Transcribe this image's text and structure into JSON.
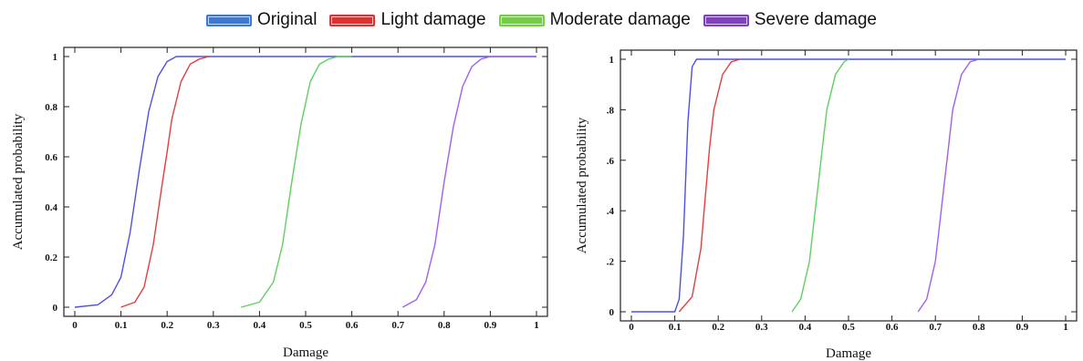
{
  "legend": {
    "entries": [
      {
        "label": "Original",
        "color": "#3c78d8"
      },
      {
        "label": "Light damage",
        "color": "#e03030"
      },
      {
        "label": "Moderate damage",
        "color": "#70d040"
      },
      {
        "label": "Severe damage",
        "color": "#8040c0"
      }
    ]
  },
  "chart_data": [
    {
      "type": "line",
      "title": "",
      "xlabel": "Damage",
      "ylabel": "Accumulated probability",
      "xlim": [
        0,
        1
      ],
      "ylim": [
        0,
        1
      ],
      "x_ticks": [
        "0",
        "0.1",
        "0.2",
        "0.3",
        "0.4",
        "0.5",
        "0.6",
        "0.7",
        "0.8",
        "0.9",
        "1"
      ],
      "y_ticks": [
        "0",
        "0.2",
        "0.4",
        "0.6",
        "0.8",
        "1"
      ],
      "grid": false,
      "series": [
        {
          "name": "Original",
          "color": "#5050e0",
          "x": [
            0,
            0.05,
            0.08,
            0.1,
            0.12,
            0.14,
            0.16,
            0.18,
            0.2,
            0.22,
            0.25,
            0.3,
            1.0
          ],
          "y": [
            0,
            0.01,
            0.05,
            0.12,
            0.3,
            0.55,
            0.78,
            0.92,
            0.98,
            1,
            1,
            1,
            1
          ]
        },
        {
          "name": "Light damage",
          "color": "#e04040",
          "x": [
            0.1,
            0.13,
            0.15,
            0.17,
            0.19,
            0.2,
            0.21,
            0.23,
            0.25,
            0.27,
            0.29
          ],
          "y": [
            0,
            0.02,
            0.08,
            0.25,
            0.5,
            0.62,
            0.75,
            0.9,
            0.97,
            0.99,
            1
          ]
        },
        {
          "name": "Moderate damage",
          "color": "#60d060",
          "x": [
            0.36,
            0.4,
            0.43,
            0.45,
            0.47,
            0.49,
            0.51,
            0.53,
            0.55,
            0.57,
            0.6
          ],
          "y": [
            0,
            0.02,
            0.1,
            0.25,
            0.5,
            0.73,
            0.9,
            0.97,
            0.99,
            1,
            1
          ]
        },
        {
          "name": "Severe damage",
          "color": "#a060f0",
          "x": [
            0.71,
            0.74,
            0.76,
            0.78,
            0.8,
            0.82,
            0.84,
            0.86,
            0.88,
            0.9,
            1.0
          ],
          "y": [
            0,
            0.03,
            0.1,
            0.25,
            0.5,
            0.72,
            0.88,
            0.96,
            0.99,
            1,
            1
          ]
        }
      ]
    },
    {
      "type": "line",
      "title": "",
      "xlabel": "Damage",
      "ylabel": "Accumulated probability",
      "xlim": [
        0,
        1
      ],
      "ylim": [
        0,
        1
      ],
      "x_ticks": [
        "0",
        "0.1",
        "0.2",
        "0.3",
        "0.4",
        "0.5",
        "0.6",
        "0.7",
        "0.8",
        "0.9",
        "1"
      ],
      "y_ticks": [
        "0",
        ".2",
        ".4",
        ".6",
        ".8",
        "1"
      ],
      "grid": false,
      "series": [
        {
          "name": "Original",
          "color": "#5050e0",
          "x": [
            0,
            0.1,
            0.11,
            0.12,
            0.13,
            0.14,
            0.15,
            1.0
          ],
          "y": [
            0,
            0,
            0.05,
            0.3,
            0.75,
            0.97,
            1,
            1
          ]
        },
        {
          "name": "Light damage",
          "color": "#e04040",
          "x": [
            0.11,
            0.14,
            0.16,
            0.17,
            0.18,
            0.19,
            0.21,
            0.23,
            0.25
          ],
          "y": [
            0,
            0.06,
            0.25,
            0.45,
            0.65,
            0.8,
            0.94,
            0.99,
            1
          ]
        },
        {
          "name": "Moderate damage",
          "color": "#60d060",
          "x": [
            0.37,
            0.39,
            0.41,
            0.42,
            0.43,
            0.44,
            0.45,
            0.47,
            0.49,
            0.5
          ],
          "y": [
            0,
            0.05,
            0.2,
            0.35,
            0.5,
            0.65,
            0.8,
            0.94,
            0.99,
            1
          ]
        },
        {
          "name": "Severe damage",
          "color": "#a060f0",
          "x": [
            0.66,
            0.68,
            0.7,
            0.71,
            0.72,
            0.73,
            0.74,
            0.76,
            0.78,
            0.8
          ],
          "y": [
            0,
            0.05,
            0.2,
            0.35,
            0.5,
            0.65,
            0.8,
            0.94,
            0.99,
            1
          ]
        }
      ]
    }
  ]
}
